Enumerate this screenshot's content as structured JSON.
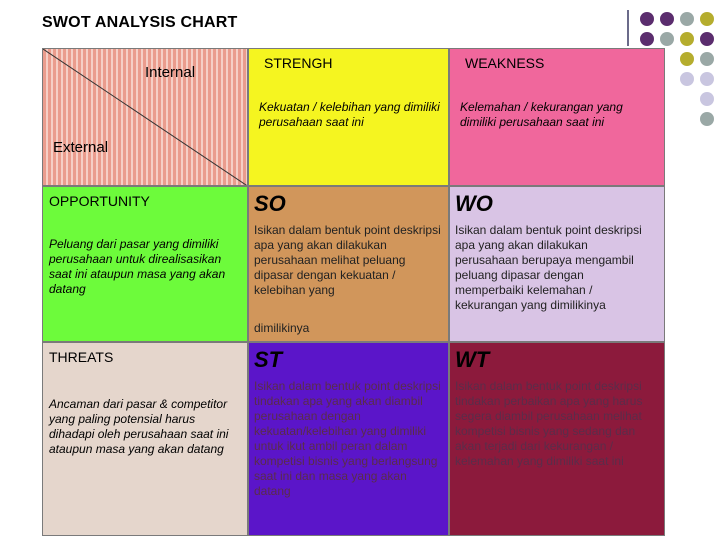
{
  "title": "SWOT ANALYSIS CHART",
  "corner": {
    "internal": "Internal",
    "external": "External"
  },
  "strength": {
    "heading": "STRENGH",
    "desc": "Kekuatan / kelebihan yang dimiliki perusahaan saat ini"
  },
  "weakness": {
    "heading": "WEAKNESS",
    "desc": "Kelemahan / kekurangan yang dimiliki perusahaan saat ini"
  },
  "opportunity": {
    "heading": "OPPORTUNITY",
    "desc": "Peluang dari pasar yang dimiliki perusahaan untuk direalisasikan saat ini ataupun masa yang akan datang"
  },
  "threats": {
    "heading": "THREATS",
    "desc": "Ancaman dari pasar & competitor yang paling potensial harus dihadapi oleh perusahaan saat ini ataupun masa yang akan datang"
  },
  "so": {
    "heading": "SO",
    "body": "Isikan dalam bentuk point deskripsi apa yang akan dilakukan perusahaan melihat peluang dipasar dengan kekuatan / kelebihan yang",
    "body2": "dimilikinya"
  },
  "wo": {
    "heading": "WO",
    "body": "Isikan dalam bentuk point deskripsi apa yang akan dilakukan perusahaan berupaya mengambil peluang dipasar dengan memperbaiki kelemahan / kekurangan yang dimilikinya"
  },
  "st": {
    "heading": "ST",
    "body": "Isikan dalam bentuk point deskripsi tindakan apa yang akan diambil perusahaan dengan kekuatan/kelebihan yang dimiliki untuk ikut ambil peran dalam kompetisi bisnis yang berlangsung saat ini dan masa yang akan datang"
  },
  "wt": {
    "heading": "WT",
    "body": "Isikan dalam bentuk point deskripsi tindakan perbaikan apa yang harus segera diambil perusahaan melihat kompetisi bisnis yang sedang dan akan terjadi dari kekurangan / kelemahan yang dimiliki saat ini"
  },
  "colors": {
    "strength": "#f5f520",
    "weakness": "#f0679c",
    "opportunity": "#6dfb3b",
    "so": "#d1965b",
    "wo": "#d9c4e5",
    "threats": "#e5d6cc",
    "st": "#5b15c9",
    "wt": "#8c1a3c",
    "dot_purple": "#5b2d6e",
    "dot_gray": "#9aa8a6",
    "dot_olive": "#b5ad2e",
    "dot_lavender": "#c9c6e0"
  }
}
